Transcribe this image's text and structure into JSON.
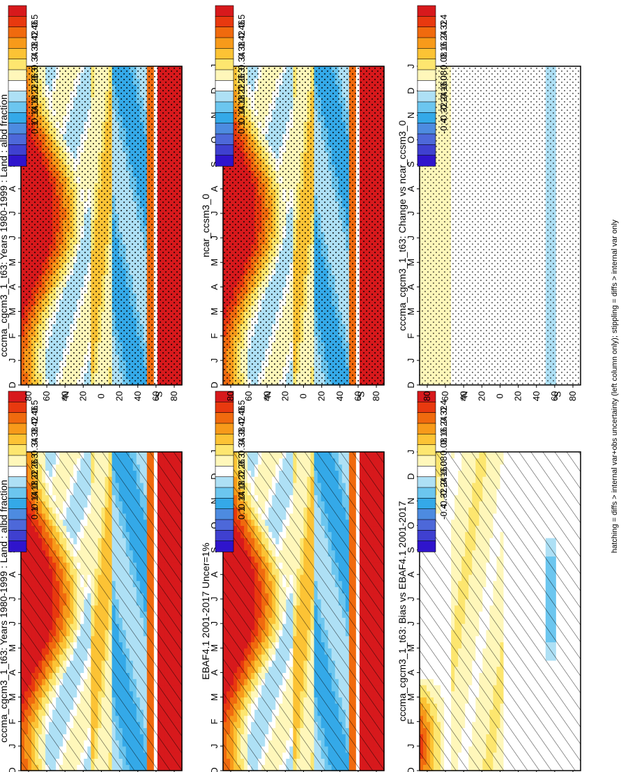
{
  "figure": {
    "footnote": "hatching = diffs > internal var+obs uncertainty (left column only); stippling = diffs > internal var only"
  },
  "chart_data": [
    {
      "type": "heatmap",
      "id": "left-top",
      "title": "cccma_cgcm3_1_t63: Years 1980-1999 : Land : albd fraction",
      "month_ticks": [
        "D",
        "J",
        "F",
        "M",
        "A",
        "M",
        "J",
        "J",
        "A",
        "S",
        "O",
        "N",
        "D",
        "J"
      ],
      "lat_ticks": [
        "80",
        "60",
        "40",
        "20",
        "0",
        "20",
        "40",
        "60",
        "80"
      ],
      "lat_hemi_labels": [
        "°N",
        "°S"
      ],
      "colorbar": {
        "labels": [
          "0.5",
          "0.46",
          "0.42",
          "0.38",
          "0.34",
          "0.3",
          "0.26",
          "0.22",
          "0.18",
          "0.14",
          "0.1"
        ],
        "colors": [
          "#d7191c",
          "#e8390f",
          "#f06a0e",
          "#f79a1a",
          "#fcc335",
          "#fde66f",
          "#fff7ba",
          "#ffffff",
          "#aee0f5",
          "#6cc6ef",
          "#34a9e8",
          "#4d8be0",
          "#4d68d9",
          "#3f40d0",
          "#2f14cc"
        ]
      },
      "pattern": "hatch"
    },
    {
      "type": "heatmap",
      "id": "right-top",
      "title": "cccma_cgcm3_1_t63: Years 1980-1999 : Land : albd fraction",
      "month_ticks": [
        "D",
        "J",
        "F",
        "M",
        "A",
        "M",
        "J",
        "J",
        "A",
        "S",
        "O",
        "N",
        "D",
        "J"
      ],
      "lat_ticks": [
        "80",
        "60",
        "40",
        "20",
        "0",
        "20",
        "40",
        "60",
        "80"
      ],
      "lat_hemi_labels": [
        "°N",
        "°S"
      ],
      "colorbar": {
        "labels": [
          "0.5",
          "0.46",
          "0.42",
          "0.38",
          "0.34",
          "0.3",
          "0.26",
          "0.22",
          "0.18",
          "0.14",
          "0.1"
        ],
        "colors": [
          "#d7191c",
          "#e8390f",
          "#f06a0e",
          "#f79a1a",
          "#fcc335",
          "#fde66f",
          "#fff7ba",
          "#ffffff",
          "#aee0f5",
          "#6cc6ef",
          "#34a9e8",
          "#4d8be0",
          "#4d68d9",
          "#3f40d0",
          "#2f14cc"
        ]
      },
      "pattern": "stipple"
    },
    {
      "type": "heatmap",
      "id": "left-mid",
      "title": "EBAF4.1 2001-2017 Uncer=1%",
      "month_ticks": [
        "D",
        "J",
        "F",
        "M",
        "A",
        "M",
        "J",
        "J",
        "A",
        "S",
        "O",
        "N",
        "D",
        "J"
      ],
      "lat_ticks": [
        "80",
        "60",
        "40",
        "20",
        "0",
        "20",
        "40",
        "60",
        "80"
      ],
      "lat_hemi_labels": [
        "°N",
        "°S"
      ],
      "colorbar": {
        "labels": [
          "0.5",
          "0.46",
          "0.42",
          "0.38",
          "0.34",
          "0.3",
          "0.26",
          "0.22",
          "0.18",
          "0.14",
          "0.1"
        ],
        "colors": [
          "#d7191c",
          "#e8390f",
          "#f06a0e",
          "#f79a1a",
          "#fcc335",
          "#fde66f",
          "#fff7ba",
          "#ffffff",
          "#aee0f5",
          "#6cc6ef",
          "#34a9e8",
          "#4d8be0",
          "#4d68d9",
          "#3f40d0",
          "#2f14cc"
        ]
      },
      "pattern": "hatch"
    },
    {
      "type": "heatmap",
      "id": "right-mid",
      "title": "ncar_ccsm3_0",
      "month_ticks": [
        "D",
        "J",
        "F",
        "M",
        "A",
        "M",
        "J",
        "J",
        "A",
        "S",
        "O",
        "N",
        "D",
        "J"
      ],
      "lat_ticks": [
        "80",
        "60",
        "40",
        "20",
        "0",
        "20",
        "40",
        "60",
        "80"
      ],
      "lat_hemi_labels": [
        "°N",
        "°S"
      ],
      "colorbar": {
        "labels": [
          "0.5",
          "0.46",
          "0.42",
          "0.38",
          "0.34",
          "0.3",
          "0.26",
          "0.22",
          "0.18",
          "0.14",
          "0.1"
        ],
        "colors": [
          "#d7191c",
          "#e8390f",
          "#f06a0e",
          "#f79a1a",
          "#fcc335",
          "#fde66f",
          "#fff7ba",
          "#ffffff",
          "#aee0f5",
          "#6cc6ef",
          "#34a9e8",
          "#4d8be0",
          "#4d68d9",
          "#3f40d0",
          "#2f14cc"
        ]
      },
      "pattern": "stipple"
    },
    {
      "type": "heatmap",
      "id": "left-bot",
      "title": "cccma_cgcm3_1_t63: Bias vs EBAF4.1 2001-2017",
      "month_ticks": [
        "D",
        "J",
        "F",
        "M",
        "A",
        "M",
        "J",
        "J",
        "A",
        "S",
        "O",
        "N",
        "D",
        "J"
      ],
      "lat_ticks": [
        "80",
        "60",
        "40",
        "20",
        "0",
        "20",
        "40",
        "60",
        "80"
      ],
      "lat_hemi_labels": [
        "°N",
        "°S"
      ],
      "colorbar": {
        "labels": [
          "0.4",
          "0.32",
          "0.24",
          "0.16",
          "0.08",
          "0",
          "-0.08",
          "-0.16",
          "-0.24",
          "-0.32",
          "-0.4"
        ],
        "colors": [
          "#d7191c",
          "#e8390f",
          "#f06a0e",
          "#f79a1a",
          "#fcc335",
          "#fde66f",
          "#fff7ba",
          "#ffffff",
          "#aee0f5",
          "#6cc6ef",
          "#34a9e8",
          "#4d8be0",
          "#4d68d9",
          "#3f40d0",
          "#2f14cc"
        ]
      },
      "pattern": "hatch"
    },
    {
      "type": "heatmap",
      "id": "right-bot",
      "title": "cccma_cgcm3_1_t63: Change vs ncar_ccsm3_0",
      "month_ticks": [
        "D",
        "J",
        "F",
        "M",
        "A",
        "M",
        "J",
        "J",
        "A",
        "S",
        "O",
        "N",
        "D",
        "J"
      ],
      "lat_ticks": [
        "80",
        "60",
        "40",
        "20",
        "0",
        "20",
        "40",
        "60",
        "80"
      ],
      "lat_hemi_labels": [
        "°N",
        "°S"
      ],
      "colorbar": {
        "labels": [
          "0.4",
          "0.32",
          "0.24",
          "0.16",
          "0.08",
          "0",
          "-0.08",
          "-0.16",
          "-0.24",
          "-0.32",
          "-0.4"
        ],
        "colors": [
          "#d7191c",
          "#e8390f",
          "#f06a0e",
          "#f79a1a",
          "#fcc335",
          "#fde66f",
          "#fff7ba",
          "#ffffff",
          "#aee0f5",
          "#6cc6ef",
          "#34a9e8",
          "#4d8be0",
          "#4d68d9",
          "#3f40d0",
          "#2f14cc"
        ]
      },
      "pattern": "stipple"
    }
  ]
}
